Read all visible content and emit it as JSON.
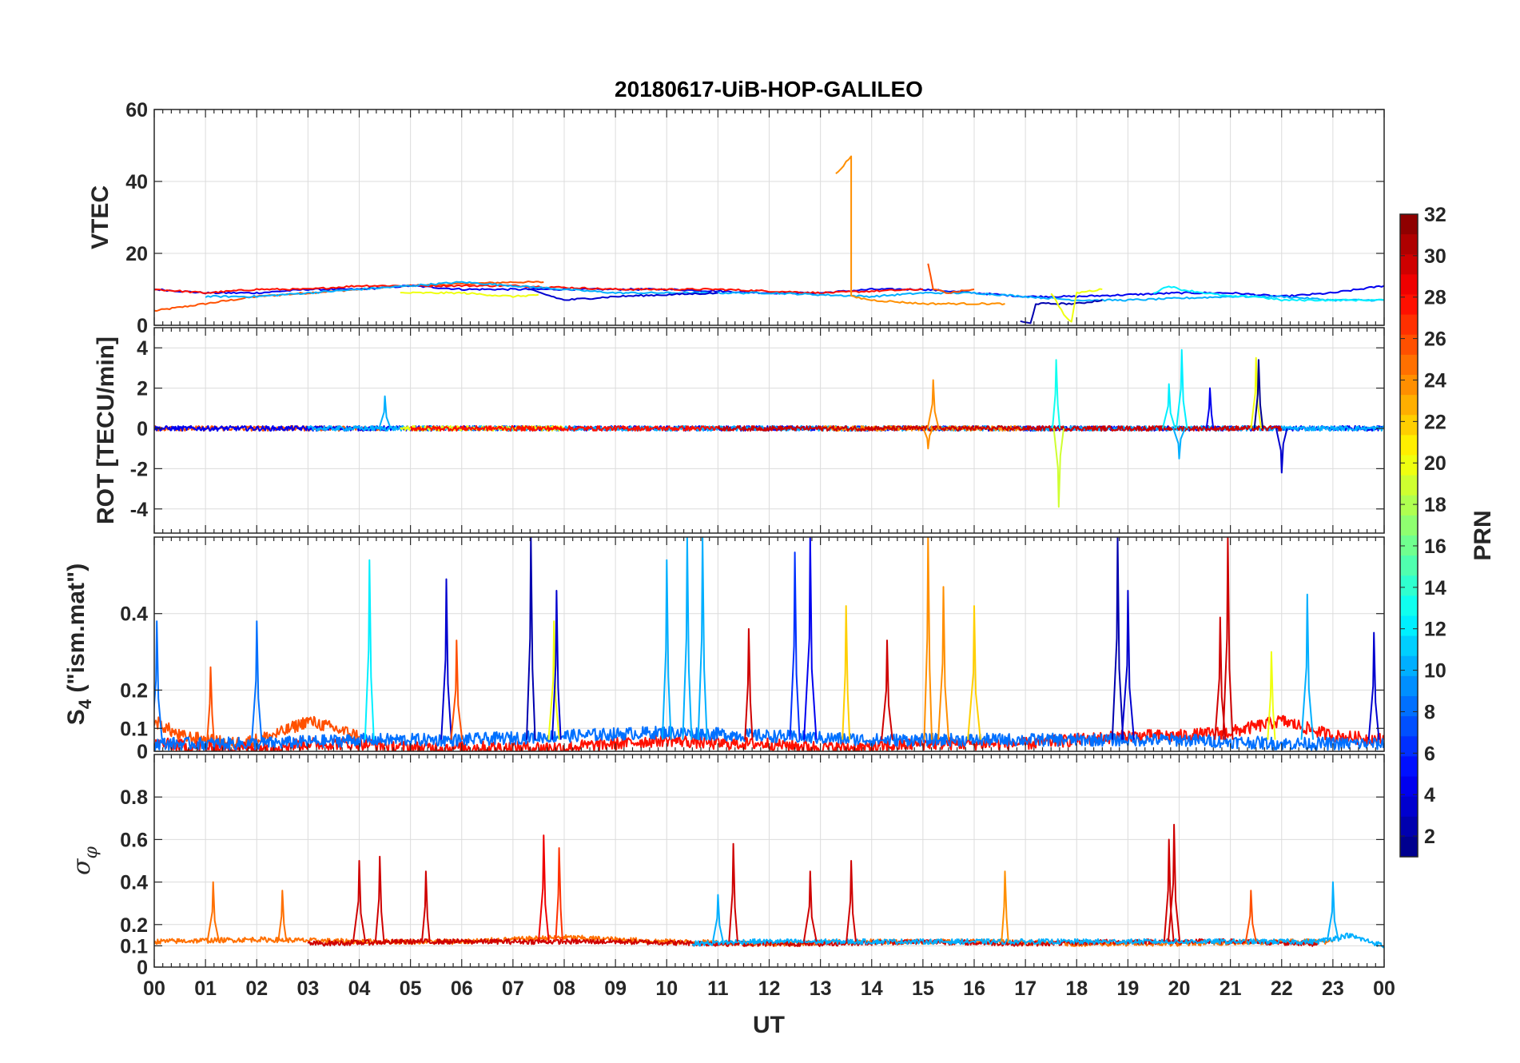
{
  "chart_data": {
    "type": "line",
    "title": "20180617-UiB-HOP-GALILEO",
    "xlabel": "UT",
    "x_ticks": [
      "00",
      "01",
      "02",
      "03",
      "04",
      "05",
      "06",
      "07",
      "08",
      "09",
      "10",
      "11",
      "12",
      "13",
      "14",
      "15",
      "16",
      "17",
      "18",
      "19",
      "20",
      "21",
      "22",
      "23",
      "00"
    ],
    "xlim": [
      0,
      24
    ],
    "grid": true,
    "colorbar": {
      "label": "PRN",
      "range": [
        1,
        32
      ],
      "colormap": "jet",
      "ticks": [
        "2",
        "4",
        "6",
        "8",
        "10",
        "12",
        "14",
        "16",
        "18",
        "20",
        "22",
        "24",
        "26",
        "28",
        "30",
        "32"
      ]
    },
    "panels": [
      {
        "id": "vtec",
        "ylabel": "VTEC",
        "ylim": [
          0,
          60
        ],
        "y_ticks": [
          "0",
          "20",
          "40",
          "60"
        ],
        "series": [
          {
            "prn": 26,
            "x": [
              0,
              0.5,
              1,
              1.5,
              2,
              3,
              4,
              5,
              6,
              7,
              7.6
            ],
            "y": [
              4,
              5,
              6,
              7,
              8,
              9,
              10,
              11,
              11.5,
              12,
              12
            ]
          },
          {
            "prn": 4,
            "x": [
              0,
              1,
              2,
              3,
              4,
              5,
              6,
              7,
              8,
              9,
              10,
              11,
              12,
              13,
              14,
              15,
              16,
              17,
              18,
              19,
              20,
              21,
              22,
              23,
              24
            ],
            "y": [
              10,
              9,
              9,
              10,
              10,
              11,
              10,
              10,
              10,
              10,
              10,
              9.5,
              9,
              9,
              10,
              10,
              9,
              8,
              8,
              8.5,
              9,
              9,
              8,
              9,
              11
            ]
          },
          {
            "prn": 28,
            "x": [
              0,
              1,
              2,
              3,
              4,
              5,
              6,
              7,
              8,
              9,
              10,
              11,
              12,
              13,
              14,
              15
            ],
            "y": [
              10,
              9,
              10,
              10,
              11,
              11,
              11,
              11,
              10.5,
              10,
              10,
              10,
              9.5,
              9,
              9.5,
              10
            ]
          },
          {
            "prn": 10,
            "x": [
              1,
              2,
              3,
              4,
              5,
              6,
              7,
              8,
              9,
              10,
              11,
              12,
              13,
              14,
              15,
              16,
              17,
              18,
              19,
              20,
              21,
              22,
              23,
              24
            ],
            "y": [
              8,
              8,
              9,
              10,
              11,
              12,
              11,
              10,
              9,
              9,
              9,
              9,
              8.5,
              8,
              9,
              9,
              8,
              7,
              7,
              7.5,
              8,
              8,
              7,
              7
            ]
          },
          {
            "prn": 20,
            "x": [
              4.8,
              5.5,
              6,
              7,
              7.5
            ],
            "y": [
              9,
              9,
              9,
              8,
              8.5
            ]
          },
          {
            "prn": 3,
            "x": [
              7.3,
              8,
              9,
              10,
              11
            ],
            "y": [
              10,
              7,
              8,
              8.5,
              9
            ]
          },
          {
            "prn": 24,
            "x": [
              13.3,
              13.6,
              13.6,
              14,
              15,
              16,
              16.6
            ],
            "y": [
              42,
              47,
              8,
              7,
              6,
              6,
              6
            ]
          },
          {
            "prn": 26,
            "x": [
              15.1,
              15.2,
              15.5,
              16
            ],
            "y": [
              17,
              10,
              9,
              10
            ]
          },
          {
            "prn": 2,
            "x": [
              16.9,
              17.1,
              17.2,
              18,
              18.5
            ],
            "y": [
              1,
              0.5,
              6,
              6,
              7
            ]
          },
          {
            "prn": 20,
            "x": [
              17.5,
              17.8,
              17.9,
              18,
              18.5
            ],
            "y": [
              9,
              2,
              1,
              9,
              10
            ]
          },
          {
            "prn": 12,
            "x": [
              19.5,
              19.8,
              20,
              20.5,
              21,
              21.5,
              22,
              22.5,
              23,
              24
            ],
            "y": [
              9,
              11,
              10,
              9,
              8,
              8,
              7,
              7,
              7,
              7
            ]
          }
        ]
      },
      {
        "id": "rot",
        "ylabel": "ROT [TECU/min]",
        "ylim": [
          -5.2,
          5
        ],
        "y_ticks": [
          "-4",
          "-2",
          "0",
          "2",
          "4"
        ],
        "series": [
          {
            "prn": 26,
            "x": [
              0,
              4.5
            ],
            "y": [
              0,
              0
            ]
          },
          {
            "prn": 4,
            "x": [
              0,
              24
            ],
            "y": [
              0,
              0
            ]
          },
          {
            "prn": 10,
            "x": [
              3,
              24
            ],
            "y": [
              0,
              0
            ]
          },
          {
            "prn": 20,
            "x": [
              4.8,
              8
            ],
            "y": [
              0,
              0
            ]
          },
          {
            "prn": 28,
            "x": [
              5,
              11
            ],
            "y": [
              0,
              0
            ]
          },
          {
            "prn": 24,
            "x": [
              13,
              17
            ],
            "y": [
              0,
              0
            ]
          },
          {
            "prn": 30,
            "x": [
              11,
              22
            ],
            "y": [
              0,
              0
            ]
          }
        ],
        "spikes": [
          {
            "prn": 10,
            "x": 4.5,
            "y": 1.6
          },
          {
            "prn": 24,
            "x": 15.2,
            "y": 2.4
          },
          {
            "prn": 24,
            "x": 15.1,
            "y": -1.0
          },
          {
            "prn": 13,
            "x": 17.6,
            "y": 3.4
          },
          {
            "prn": 19,
            "x": 17.65,
            "y": -3.9
          },
          {
            "prn": 12,
            "x": 19.8,
            "y": 2.2
          },
          {
            "prn": 12,
            "x": 20.05,
            "y": 3.9
          },
          {
            "prn": 4,
            "x": 20.6,
            "y": 2.0
          },
          {
            "prn": 20,
            "x": 21.5,
            "y": 3.5
          },
          {
            "prn": 1,
            "x": 21.55,
            "y": 3.4
          },
          {
            "prn": 3,
            "x": 22.0,
            "y": -2.2
          },
          {
            "prn": 10,
            "x": 20,
            "y": -1.5
          }
        ]
      },
      {
        "id": "s4",
        "ylabel": "S4 (\"ism.mat\")",
        "ylabel_main": "S",
        "ylabel_sub": "4",
        "ylabel_rest": " (\"ism.mat\")",
        "ylim": [
          0.04,
          0.6
        ],
        "y_ticks": [
          "0",
          "0.1",
          "0.2",
          "0.4"
        ],
        "series": [
          {
            "prn": 26,
            "x": [
              0,
              0.5,
              1,
              1.5,
              2,
              2.5,
              3,
              3.5,
              4
            ],
            "y": [
              0.12,
              0.08,
              0.07,
              0.06,
              0.07,
              0.09,
              0.12,
              0.1,
              0.08
            ]
          },
          {
            "prn": 28,
            "x": [
              0,
              1,
              2,
              3,
              4,
              5,
              6,
              7,
              8,
              9,
              10,
              11,
              12,
              13,
              14,
              15,
              16,
              17,
              18,
              19,
              20,
              21,
              22,
              23,
              24
            ],
            "y": [
              0.06,
              0.05,
              0.05,
              0.06,
              0.06,
              0.05,
              0.05,
              0.05,
              0.05,
              0.06,
              0.07,
              0.06,
              0.06,
              0.05,
              0.05,
              0.06,
              0.06,
              0.06,
              0.07,
              0.08,
              0.08,
              0.09,
              0.12,
              0.08,
              0.07
            ]
          },
          {
            "prn": 8,
            "x": [
              0,
              2,
              4,
              6,
              8,
              10,
              12,
              14,
              16,
              18,
              20,
              22,
              24
            ],
            "y": [
              0.06,
              0.06,
              0.07,
              0.07,
              0.08,
              0.09,
              0.08,
              0.07,
              0.07,
              0.07,
              0.07,
              0.06,
              0.06
            ]
          }
        ],
        "spikes": [
          {
            "prn": 8,
            "x": 0.05,
            "y": 0.38
          },
          {
            "prn": 26,
            "x": 1.1,
            "y": 0.26
          },
          {
            "prn": 8,
            "x": 2.0,
            "y": 0.38
          },
          {
            "prn": 12,
            "x": 4.2,
            "y": 0.54
          },
          {
            "prn": 3,
            "x": 5.7,
            "y": 0.49
          },
          {
            "prn": 26,
            "x": 5.9,
            "y": 0.33
          },
          {
            "prn": 2,
            "x": 7.35,
            "y": 0.6
          },
          {
            "prn": 20,
            "x": 7.8,
            "y": 0.38
          },
          {
            "prn": 3,
            "x": 7.85,
            "y": 0.46
          },
          {
            "prn": 10,
            "x": 10.0,
            "y": 0.54
          },
          {
            "prn": 10,
            "x": 10.4,
            "y": 0.6
          },
          {
            "prn": 10,
            "x": 10.7,
            "y": 0.6
          },
          {
            "prn": 30,
            "x": 11.6,
            "y": 0.36
          },
          {
            "prn": 6,
            "x": 12.5,
            "y": 0.56
          },
          {
            "prn": 4,
            "x": 12.8,
            "y": 0.6
          },
          {
            "prn": 22,
            "x": 13.5,
            "y": 0.42
          },
          {
            "prn": 30,
            "x": 14.3,
            "y": 0.33
          },
          {
            "prn": 24,
            "x": 15.1,
            "y": 0.6
          },
          {
            "prn": 24,
            "x": 15.4,
            "y": 0.47
          },
          {
            "prn": 22,
            "x": 16.0,
            "y": 0.42
          },
          {
            "prn": 2,
            "x": 18.8,
            "y": 0.6
          },
          {
            "prn": 3,
            "x": 19.0,
            "y": 0.46
          },
          {
            "prn": 30,
            "x": 20.8,
            "y": 0.39
          },
          {
            "prn": 30,
            "x": 20.95,
            "y": 0.6
          },
          {
            "prn": 20,
            "x": 21.8,
            "y": 0.3
          },
          {
            "prn": 10,
            "x": 22.5,
            "y": 0.45
          },
          {
            "prn": 3,
            "x": 23.8,
            "y": 0.35
          }
        ]
      },
      {
        "id": "sigma_phi",
        "ylabel": "σφ",
        "ylabel_main": "σ",
        "ylabel_sub": "φ",
        "ylim": [
          0,
          1
        ],
        "y_ticks": [
          "0",
          "0.1",
          "0.2",
          "0.4",
          "0.6",
          "0.8"
        ],
        "series": [
          {
            "prn": 25,
            "x": [
              0,
              2,
              4,
              6,
              8,
              10,
              12,
              14,
              16,
              18,
              20,
              22,
              23
            ],
            "y": [
              0.12,
              0.13,
              0.12,
              0.12,
              0.14,
              0.12,
              0.11,
              0.12,
              0.12,
              0.11,
              0.11,
              0.12,
              0.12
            ]
          },
          {
            "prn": 30,
            "x": [
              3,
              5,
              7,
              9,
              11,
              13,
              15,
              17,
              19,
              21,
              22.7
            ],
            "y": [
              0.11,
              0.12,
              0.12,
              0.12,
              0.11,
              0.11,
              0.12,
              0.11,
              0.12,
              0.12,
              0.11
            ]
          },
          {
            "prn": 10,
            "x": [
              10.5,
              11.5,
              22.7,
              23.3,
              24
            ],
            "y": [
              0.11,
              0.12,
              0.12,
              0.15,
              0.1
            ]
          }
        ],
        "spikes": [
          {
            "prn": 25,
            "x": 1.15,
            "y": 0.4
          },
          {
            "prn": 25,
            "x": 2.5,
            "y": 0.36
          },
          {
            "prn": 30,
            "x": 4.0,
            "y": 0.5
          },
          {
            "prn": 30,
            "x": 4.4,
            "y": 0.52
          },
          {
            "prn": 30,
            "x": 5.3,
            "y": 0.45
          },
          {
            "prn": 29,
            "x": 7.6,
            "y": 0.62
          },
          {
            "prn": 27,
            "x": 7.9,
            "y": 0.56
          },
          {
            "prn": 10,
            "x": 11.0,
            "y": 0.34
          },
          {
            "prn": 30,
            "x": 11.3,
            "y": 0.58
          },
          {
            "prn": 30,
            "x": 12.8,
            "y": 0.45
          },
          {
            "prn": 30,
            "x": 13.6,
            "y": 0.5
          },
          {
            "prn": 24,
            "x": 16.6,
            "y": 0.45
          },
          {
            "prn": 30,
            "x": 19.8,
            "y": 0.6
          },
          {
            "prn": 30,
            "x": 19.9,
            "y": 0.67
          },
          {
            "prn": 10,
            "x": 23.0,
            "y": 0.4
          },
          {
            "prn": 26,
            "x": 21.4,
            "y": 0.36
          }
        ]
      }
    ]
  }
}
